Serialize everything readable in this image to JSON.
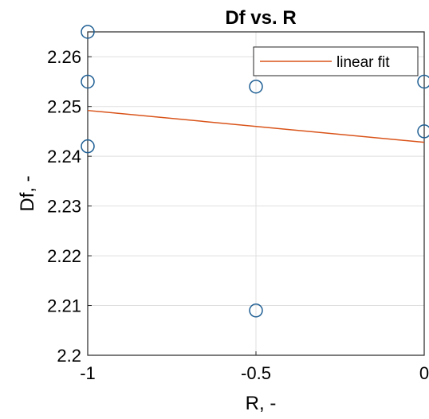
{
  "chart_data": {
    "type": "scatter",
    "title": "Df vs. R",
    "xlabel": "R, -",
    "ylabel": "Df, -",
    "xlim": [
      -1,
      0
    ],
    "ylim": [
      2.2,
      2.265
    ],
    "x_ticks": [
      -1,
      -0.5,
      0
    ],
    "x_tick_labels": [
      "-1",
      "-0.5",
      "0"
    ],
    "y_ticks": [
      2.2,
      2.21,
      2.22,
      2.23,
      2.24,
      2.25,
      2.26
    ],
    "y_tick_labels": [
      "2.2",
      "2.21",
      "2.22",
      "2.23",
      "2.24",
      "2.25",
      "2.26"
    ],
    "grid": true,
    "legend": {
      "position": "top-right",
      "entries": [
        "linear fit"
      ]
    },
    "series": [
      {
        "type": "scatter",
        "marker": "circle",
        "color": "#1f5f94",
        "points": [
          {
            "x": -1,
            "y": 2.265
          },
          {
            "x": -1,
            "y": 2.255
          },
          {
            "x": -1,
            "y": 2.242
          },
          {
            "x": -0.5,
            "y": 2.254
          },
          {
            "x": -0.5,
            "y": 2.209
          },
          {
            "x": 0,
            "y": 2.255
          },
          {
            "x": 0,
            "y": 2.245
          }
        ]
      },
      {
        "name": "linear fit",
        "type": "line",
        "color": "#d95319",
        "x": [
          -1,
          0
        ],
        "y": [
          2.2492,
          2.2428
        ]
      }
    ]
  }
}
